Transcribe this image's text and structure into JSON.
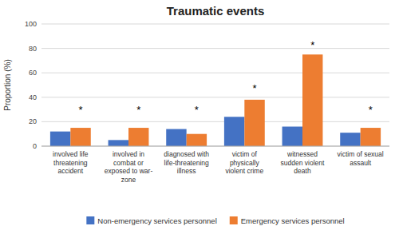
{
  "chart_data": {
    "type": "bar",
    "title": "Traumatic events",
    "y_label": "Proportion (%)",
    "categories": [
      "involved life\nthreatening\naccident",
      "involved in\ncombat or\nexposed to war-\nzone",
      "diagnosed with\nlife-threatening\nillness",
      "victim of\nphysically\nviolent crime",
      "witnessed\nsudden violent\ndeath",
      "victim of sexual\nassault"
    ],
    "series": [
      {
        "name": "Non-emergency services personnel",
        "color": "#4472c4",
        "values": [
          12,
          5,
          14,
          24,
          16,
          11
        ]
      },
      {
        "name": "Emergency services personnel",
        "color": "#ed7d31",
        "values": [
          15,
          15,
          10,
          38,
          75,
          15
        ]
      }
    ],
    "ylim": [
      0,
      100
    ],
    "yticks": [
      0,
      20,
      40,
      60,
      80,
      100
    ],
    "grid": true,
    "legend": "bottom",
    "annotations": [
      {
        "text": "*",
        "category": "involved life\nthreatening\naccident",
        "y": 30
      },
      {
        "text": "*",
        "category": "involved in\ncombat or\nexposed to war-\nzone",
        "y": 30
      },
      {
        "text": "*",
        "category": "diagnosed with\nlife-threatening\nillness",
        "y": 30
      },
      {
        "text": "*",
        "category": "victim of\nphysically\nviolent crime",
        "y": 48
      },
      {
        "text": "*",
        "category": "witnessed\nsudden violent\ndeath",
        "y": 83
      },
      {
        "text": "*",
        "category": "victim of sexual\nassault",
        "y": 30
      }
    ]
  }
}
